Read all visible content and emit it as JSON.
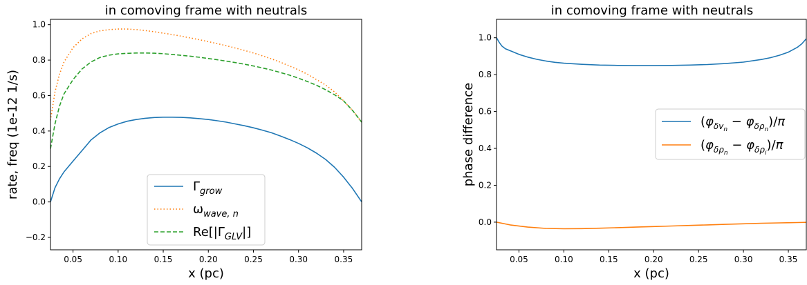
{
  "chart_data": [
    {
      "type": "line",
      "title": "in comoving frame with neutrals",
      "xlabel": "x (pc)",
      "ylabel": "rate, freq (1e-12 1/s)",
      "xlim": [
        0.025,
        0.37
      ],
      "ylim": [
        -0.27,
        1.03
      ],
      "xticks": [
        0.05,
        0.1,
        0.15,
        0.2,
        0.25,
        0.3,
        0.35
      ],
      "xtick_labels": [
        "0.05",
        "0.10",
        "0.15",
        "0.20",
        "0.25",
        "0.30",
        "0.35"
      ],
      "yticks": [
        -0.2,
        0.0,
        0.2,
        0.4,
        0.6,
        0.8,
        1.0
      ],
      "ytick_labels": [
        "−0.2",
        "0.0",
        "0.2",
        "0.4",
        "0.6",
        "0.8",
        "1.0"
      ],
      "grid": false,
      "legend_position": "lower-center",
      "series": [
        {
          "name": "Γgrow",
          "legend": {
            "base": "Γ",
            "sub": "grow"
          },
          "color": "#1f77b4",
          "style": "solid",
          "x": [
            0.025,
            0.03,
            0.035,
            0.04,
            0.05,
            0.06,
            0.07,
            0.08,
            0.09,
            0.1,
            0.11,
            0.12,
            0.13,
            0.14,
            0.15,
            0.16,
            0.17,
            0.18,
            0.19,
            0.2,
            0.21,
            0.22,
            0.23,
            0.24,
            0.25,
            0.26,
            0.27,
            0.28,
            0.29,
            0.3,
            0.31,
            0.32,
            0.33,
            0.34,
            0.35,
            0.36,
            0.37
          ],
          "y": [
            0.0,
            0.08,
            0.13,
            0.17,
            0.23,
            0.29,
            0.35,
            0.39,
            0.42,
            0.44,
            0.455,
            0.465,
            0.472,
            0.476,
            0.478,
            0.478,
            0.477,
            0.474,
            0.47,
            0.465,
            0.458,
            0.45,
            0.44,
            0.43,
            0.418,
            0.405,
            0.39,
            0.372,
            0.352,
            0.33,
            0.305,
            0.275,
            0.24,
            0.195,
            0.14,
            0.075,
            0.0
          ]
        },
        {
          "name": "ωwave,n",
          "legend": {
            "base": "ω",
            "sub": "wave, n"
          },
          "color": "#ff7f0e",
          "style": "dotted",
          "x": [
            0.025,
            0.03,
            0.035,
            0.04,
            0.05,
            0.06,
            0.07,
            0.08,
            0.09,
            0.1,
            0.11,
            0.12,
            0.13,
            0.14,
            0.15,
            0.16,
            0.17,
            0.18,
            0.19,
            0.2,
            0.21,
            0.22,
            0.23,
            0.24,
            0.25,
            0.26,
            0.27,
            0.28,
            0.29,
            0.3,
            0.31,
            0.32,
            0.33,
            0.34,
            0.35,
            0.36,
            0.37
          ],
          "y": [
            0.46,
            0.62,
            0.72,
            0.79,
            0.87,
            0.92,
            0.95,
            0.965,
            0.972,
            0.975,
            0.975,
            0.972,
            0.967,
            0.96,
            0.952,
            0.944,
            0.935,
            0.925,
            0.915,
            0.904,
            0.893,
            0.881,
            0.868,
            0.855,
            0.84,
            0.824,
            0.807,
            0.788,
            0.767,
            0.745,
            0.72,
            0.69,
            0.66,
            0.62,
            0.57,
            0.515,
            0.45
          ]
        },
        {
          "name": "Re[|ΓGLV|]",
          "legend": {
            "base": "Re[|Γ",
            "sub": "GLV",
            "after": "|]"
          },
          "color": "#2ca02c",
          "style": "dashed",
          "x": [
            0.025,
            0.03,
            0.035,
            0.04,
            0.05,
            0.06,
            0.07,
            0.08,
            0.09,
            0.1,
            0.11,
            0.12,
            0.13,
            0.14,
            0.15,
            0.16,
            0.17,
            0.18,
            0.19,
            0.2,
            0.21,
            0.22,
            0.23,
            0.24,
            0.25,
            0.26,
            0.27,
            0.28,
            0.29,
            0.3,
            0.31,
            0.32,
            0.33,
            0.34,
            0.35,
            0.36,
            0.37
          ],
          "y": [
            0.3,
            0.44,
            0.54,
            0.61,
            0.69,
            0.75,
            0.79,
            0.815,
            0.828,
            0.835,
            0.838,
            0.84,
            0.84,
            0.839,
            0.836,
            0.832,
            0.827,
            0.822,
            0.816,
            0.809,
            0.802,
            0.794,
            0.786,
            0.777,
            0.767,
            0.756,
            0.744,
            0.73,
            0.715,
            0.698,
            0.679,
            0.658,
            0.633,
            0.604,
            0.57,
            0.515,
            0.45
          ]
        }
      ]
    },
    {
      "type": "line",
      "title": "in comoving frame with neutrals",
      "xlabel": "x (pc)",
      "ylabel": "phase difference",
      "xlim": [
        0.025,
        0.37
      ],
      "ylim": [
        -0.15,
        1.1
      ],
      "xticks": [
        0.05,
        0.1,
        0.15,
        0.2,
        0.25,
        0.3,
        0.35
      ],
      "xtick_labels": [
        "0.05",
        "0.10",
        "0.15",
        "0.20",
        "0.25",
        "0.30",
        "0.35"
      ],
      "yticks": [
        0.0,
        0.2,
        0.4,
        0.6,
        0.8,
        1.0
      ],
      "ytick_labels": [
        "0.0",
        "0.2",
        "0.4",
        "0.6",
        "0.8",
        "1.0"
      ],
      "grid": false,
      "legend_position": "center-right",
      "series": [
        {
          "name": "(φδvn − φδρn)/π",
          "legend": {
            "parts": [
              [
                "(",
                ""
              ],
              [
                "φ",
                ""
              ],
              [
                "δv",
                "sub"
              ],
              [
                "n",
                "subsub"
              ],
              [
                " − ",
                ""
              ],
              [
                "φ",
                ""
              ],
              [
                "δρ",
                "sub"
              ],
              [
                "n",
                "subsub"
              ],
              [
                ")/",
                ""
              ],
              [
                "π",
                ""
              ]
            ]
          },
          "color": "#1f77b4",
          "style": "solid",
          "x": [
            0.025,
            0.028,
            0.031,
            0.035,
            0.04,
            0.05,
            0.06,
            0.07,
            0.08,
            0.09,
            0.1,
            0.12,
            0.14,
            0.16,
            0.18,
            0.2,
            0.22,
            0.24,
            0.26,
            0.28,
            0.3,
            0.32,
            0.33,
            0.34,
            0.35,
            0.36,
            0.365,
            0.37
          ],
          "y": [
            1.0,
            0.975,
            0.955,
            0.94,
            0.93,
            0.91,
            0.895,
            0.883,
            0.874,
            0.867,
            0.862,
            0.856,
            0.852,
            0.85,
            0.849,
            0.849,
            0.85,
            0.852,
            0.855,
            0.86,
            0.868,
            0.882,
            0.892,
            0.905,
            0.922,
            0.948,
            0.967,
            0.995
          ]
        },
        {
          "name": "(φδρn − φδρi)/π",
          "legend": {
            "parts": [
              [
                "(",
                ""
              ],
              [
                "φ",
                ""
              ],
              [
                "δρ",
                "sub"
              ],
              [
                "n",
                "subsub"
              ],
              [
                " − ",
                ""
              ],
              [
                "φ",
                ""
              ],
              [
                "δρ",
                "sub"
              ],
              [
                "i",
                "subsub"
              ],
              [
                ")/",
                ""
              ],
              [
                "π",
                ""
              ]
            ]
          },
          "color": "#ff7f0e",
          "style": "solid",
          "x": [
            0.025,
            0.04,
            0.06,
            0.08,
            0.1,
            0.12,
            0.14,
            0.16,
            0.18,
            0.2,
            0.22,
            0.24,
            0.26,
            0.28,
            0.3,
            0.32,
            0.34,
            0.36,
            0.37
          ],
          "y": [
            0.0,
            -0.015,
            -0.027,
            -0.034,
            -0.036,
            -0.035,
            -0.033,
            -0.03,
            -0.027,
            -0.024,
            -0.021,
            -0.018,
            -0.015,
            -0.012,
            -0.009,
            -0.006,
            -0.004,
            -0.002,
            -0.001
          ]
        }
      ]
    }
  ]
}
